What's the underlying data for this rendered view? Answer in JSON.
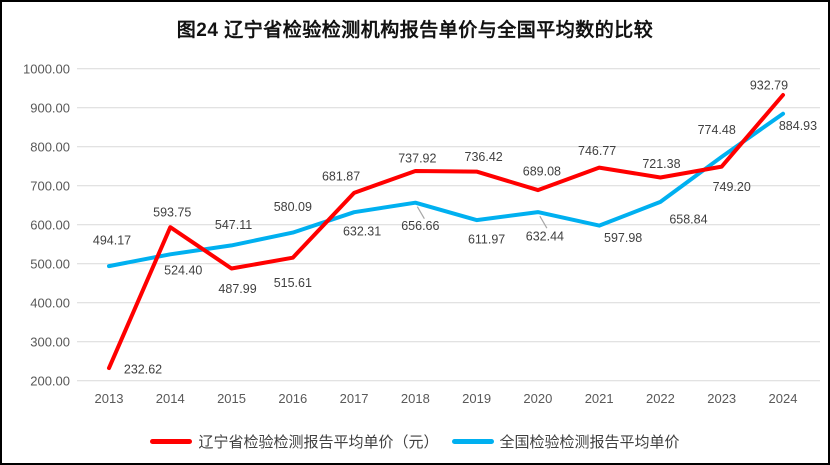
{
  "title": "图24 辽宁省检验检测机构报告单价与全国平均数的比较",
  "chart_data": {
    "type": "line",
    "x": [
      "2013",
      "2014",
      "2015",
      "2016",
      "2017",
      "2018",
      "2019",
      "2020",
      "2021",
      "2022",
      "2023",
      "2024"
    ],
    "series": [
      {
        "name": "辽宁省检验检测报告平均单价（元）",
        "color": "#FF0000",
        "values": [
          232.62,
          593.75,
          487.99,
          515.61,
          681.87,
          737.92,
          736.42,
          689.08,
          746.77,
          721.38,
          749.2,
          932.79
        ],
        "label_offsets": [
          [
            34,
            1
          ],
          [
            2,
            -15
          ],
          [
            6,
            20
          ],
          [
            0,
            25
          ],
          [
            -13,
            -17
          ],
          [
            2,
            -13
          ],
          [
            7,
            -15
          ],
          [
            4,
            -19
          ],
          [
            -2,
            -17
          ],
          [
            1,
            -14
          ],
          [
            10,
            20
          ],
          [
            -14,
            -10
          ]
        ],
        "leader_line_indices": []
      },
      {
        "name": "全国检验检测报告平均单价",
        "color": "#00B0F0",
        "values": [
          494.17,
          524.4,
          547.11,
          580.09,
          632.31,
          656.66,
          611.97,
          632.44,
          597.98,
          658.84,
          774.48,
          884.93
        ],
        "label_offsets": [
          [
            3,
            -26
          ],
          [
            13,
            16
          ],
          [
            2,
            -21
          ],
          [
            0,
            -26
          ],
          [
            8,
            19
          ],
          [
            5,
            23
          ],
          [
            10,
            19
          ],
          [
            7,
            24
          ],
          [
            24,
            12
          ],
          [
            28,
            17
          ],
          [
            -5,
            -27
          ],
          [
            15,
            12
          ]
        ],
        "leader_line_indices": [
          5,
          7
        ]
      }
    ],
    "ylim": [
      200,
      1000
    ],
    "ytick_step": 100,
    "ytick_decimals": 2,
    "data_label_decimals": 2,
    "grid": "horizontal",
    "gridline_color": "#D9D9D9",
    "axis_text_color": "#595959",
    "data_label_color": "#404040",
    "leader_line_color": "#A6A6A6",
    "legend_position": "bottom"
  }
}
